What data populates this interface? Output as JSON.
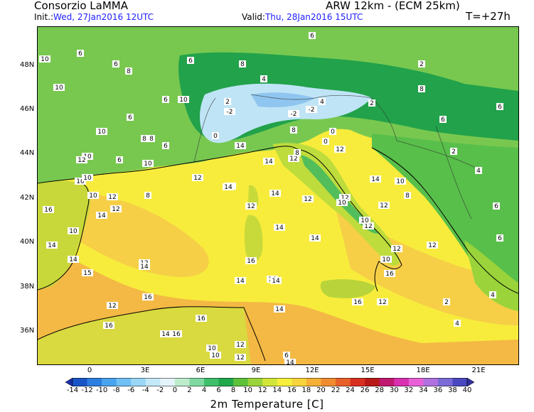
{
  "header": {
    "org": "Consorzio LaMMA",
    "model": "ARW 12km  - (ECM 25km)",
    "init_label": "Init.:",
    "init_value": "Wed, 27Jan2016  12UTC",
    "valid_label": "Valid:",
    "valid_value": "Thu, 28Jan2016  15UTC",
    "lead": "T=+27h"
  },
  "axes": {
    "lat_labels": [
      "48N",
      "46N",
      "44N",
      "42N",
      "40N",
      "38N",
      "36N"
    ],
    "lon_labels": [
      "0",
      "3E",
      "6E",
      "9E",
      "12E",
      "15E",
      "18E",
      "21E"
    ]
  },
  "colorbar": {
    "title": "2m Temperature [C]",
    "labels": [
      "-14",
      "-12",
      "-10",
      "-8",
      "-6",
      "-4",
      "-2",
      "0",
      "2",
      "4",
      "6",
      "8",
      "10",
      "12",
      "14",
      "16",
      "18",
      "20",
      "22",
      "24",
      "26",
      "28",
      "30",
      "32",
      "34",
      "36",
      "38",
      "40"
    ],
    "colors": [
      "#1a2fa8",
      "#1a55c8",
      "#2c7fe0",
      "#4aa3ee",
      "#6fc0f4",
      "#9ad6f6",
      "#c4e8f8",
      "#e4f4fa",
      "#bdeccd",
      "#7fd8a0",
      "#3fbf6a",
      "#1ea84a",
      "#5cc23a",
      "#9ad43a",
      "#d2e63a",
      "#f6f03c",
      "#f8d43c",
      "#f6b036",
      "#f08c30",
      "#e8602a",
      "#d83020",
      "#b81818",
      "#c01870",
      "#d830b0",
      "#e860d8",
      "#b070e0",
      "#7a6ad8",
      "#4a48c0",
      "#3030a0"
    ]
  },
  "map": {
    "sea_color": "#f7ec3c",
    "warm_color": "#f3b445",
    "land_color": "#78c850",
    "alpine_color": "#22a24a",
    "cold_color": "#bfe4f6",
    "labels": [
      {
        "t": "6"
      },
      {
        "t": "10"
      },
      {
        "t": "8"
      },
      {
        "t": "6"
      },
      {
        "t": "8"
      },
      {
        "t": "6"
      },
      {
        "t": "10"
      },
      {
        "t": "2"
      },
      {
        "t": "4"
      },
      {
        "t": "2"
      },
      {
        "t": "10"
      },
      {
        "t": "6"
      },
      {
        "t": "8"
      },
      {
        "t": "4"
      },
      {
        "t": "-2"
      },
      {
        "t": "0"
      },
      {
        "t": "-2"
      },
      {
        "t": "2"
      },
      {
        "t": "0"
      },
      {
        "t": "-2"
      },
      {
        "t": "6"
      },
      {
        "t": "10"
      },
      {
        "t": "6"
      },
      {
        "t": "8"
      },
      {
        "t": "2"
      },
      {
        "t": "6"
      },
      {
        "t": "10"
      },
      {
        "t": "6"
      },
      {
        "t": "8"
      },
      {
        "t": "0"
      },
      {
        "t": "6"
      },
      {
        "t": "12"
      },
      {
        "t": "10"
      },
      {
        "t": "8"
      },
      {
        "t": "4"
      },
      {
        "t": "6"
      },
      {
        "t": "10"
      },
      {
        "t": "12"
      },
      {
        "t": "8"
      },
      {
        "t": "12"
      },
      {
        "t": "14"
      },
      {
        "t": "12"
      },
      {
        "t": "10"
      },
      {
        "t": "12"
      },
      {
        "t": "10"
      },
      {
        "t": "8"
      },
      {
        "t": "12"
      },
      {
        "t": "12"
      },
      {
        "t": "14"
      },
      {
        "t": "14"
      },
      {
        "t": "10"
      },
      {
        "t": "12"
      },
      {
        "t": "12"
      },
      {
        "t": "14"
      },
      {
        "t": "10"
      },
      {
        "t": "12"
      },
      {
        "t": "14"
      },
      {
        "t": "12"
      },
      {
        "t": "14"
      },
      {
        "t": "14"
      },
      {
        "t": "16"
      },
      {
        "t": "14"
      },
      {
        "t": "15"
      },
      {
        "t": "14"
      },
      {
        "t": "12"
      },
      {
        "t": "16"
      },
      {
        "t": "14"
      },
      {
        "t": "14"
      },
      {
        "t": "16"
      },
      {
        "t": "14"
      },
      {
        "t": "14"
      },
      {
        "t": "16"
      },
      {
        "t": "10"
      },
      {
        "t": "16"
      },
      {
        "t": "16"
      },
      {
        "t": "14"
      },
      {
        "t": "12"
      },
      {
        "t": "14"
      },
      {
        "t": "12"
      },
      {
        "t": "10"
      },
      {
        "t": "16"
      },
      {
        "t": "16"
      },
      {
        "t": "16"
      },
      {
        "t": "14"
      },
      {
        "t": "12"
      },
      {
        "t": "10"
      },
      {
        "t": "12"
      },
      {
        "t": "6"
      },
      {
        "t": "4"
      },
      {
        "t": "2"
      },
      {
        "t": "4"
      },
      {
        "t": "6"
      },
      {
        "t": "2"
      },
      {
        "t": "6"
      },
      {
        "t": "8"
      },
      {
        "t": "10"
      },
      {
        "t": "12"
      },
      {
        "t": "10"
      },
      {
        "t": "12"
      },
      {
        "t": "14"
      }
    ]
  }
}
